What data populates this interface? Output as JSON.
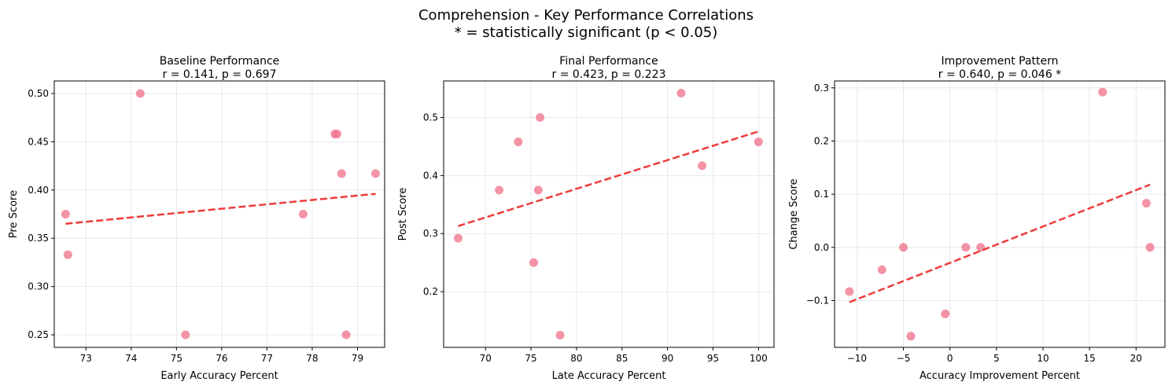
{
  "figure": {
    "title_line1": "Comprehension - Key Performance Correlations",
    "title_line2": "* = statistically significant (p < 0.05)"
  },
  "colors": {
    "point": "#f07890",
    "trend": "#ee3b3b",
    "grid": "#e3e3e3",
    "axis": "#000000"
  },
  "chart_data": [
    {
      "type": "scatter",
      "title": "Baseline Performance",
      "subtitle": "r = 0.141, p = 0.697",
      "xlabel": "Early Accuracy Percent",
      "ylabel": "Pre Score",
      "xlim": [
        72.3,
        79.6
      ],
      "ylim": [
        0.237,
        0.513
      ],
      "xticks": [
        73,
        74,
        75,
        76,
        77,
        78,
        79
      ],
      "xtick_labels": [
        "73",
        "74",
        "75",
        "76",
        "77",
        "78",
        "79"
      ],
      "yticks": [
        0.25,
        0.3,
        0.35,
        0.4,
        0.45,
        0.5
      ],
      "ytick_labels": [
        "0.25",
        "0.30",
        "0.35",
        "0.40",
        "0.45",
        "0.50"
      ],
      "grid": true,
      "points": [
        {
          "x": 72.55,
          "y": 0.375
        },
        {
          "x": 72.6,
          "y": 0.333
        },
        {
          "x": 74.2,
          "y": 0.5
        },
        {
          "x": 75.2,
          "y": 0.25
        },
        {
          "x": 77.8,
          "y": 0.375
        },
        {
          "x": 78.5,
          "y": 0.458
        },
        {
          "x": 78.55,
          "y": 0.458
        },
        {
          "x": 78.65,
          "y": 0.417
        },
        {
          "x": 78.75,
          "y": 0.25
        },
        {
          "x": 79.4,
          "y": 0.417
        }
      ],
      "trend_line": {
        "x": [
          72.55,
          79.4
        ],
        "y": [
          0.365,
          0.396
        ]
      }
    },
    {
      "type": "scatter",
      "title": "Final Performance",
      "subtitle": "r = 0.423, p = 0.223",
      "xlabel": "Late Accuracy Percent",
      "ylabel": "Post Score",
      "xlim": [
        65.4,
        101.7
      ],
      "ylim": [
        0.104,
        0.563
      ],
      "xticks": [
        70,
        75,
        80,
        85,
        90,
        95,
        100
      ],
      "xtick_labels": [
        "70",
        "75",
        "80",
        "85",
        "90",
        "95",
        "100"
      ],
      "yticks": [
        0.2,
        0.3,
        0.4,
        0.5
      ],
      "ytick_labels": [
        "0.2",
        "0.3",
        "0.4",
        "0.5"
      ],
      "grid": true,
      "points": [
        {
          "x": 67.0,
          "y": 0.292
        },
        {
          "x": 71.5,
          "y": 0.375
        },
        {
          "x": 73.6,
          "y": 0.458
        },
        {
          "x": 75.3,
          "y": 0.25
        },
        {
          "x": 75.8,
          "y": 0.375
        },
        {
          "x": 76.0,
          "y": 0.5
        },
        {
          "x": 78.2,
          "y": 0.125
        },
        {
          "x": 91.5,
          "y": 0.542
        },
        {
          "x": 93.8,
          "y": 0.417
        },
        {
          "x": 100.0,
          "y": 0.458
        }
      ],
      "trend_line": {
        "x": [
          67.0,
          100.0
        ],
        "y": [
          0.313,
          0.476
        ]
      }
    },
    {
      "type": "scatter",
      "title": "Improvement Pattern",
      "subtitle": "r = 0.640, p = 0.046 *",
      "xlabel": "Accuracy Improvement Percent",
      "ylabel": "Change Score",
      "xlim": [
        -12.4,
        23.1
      ],
      "ylim": [
        -0.188,
        0.313
      ],
      "xticks": [
        -10,
        -5,
        0,
        5,
        10,
        15,
        20
      ],
      "xtick_labels": [
        "−10",
        "−5",
        "0",
        "5",
        "10",
        "15",
        "20"
      ],
      "yticks": [
        -0.1,
        0.0,
        0.1,
        0.2,
        0.3
      ],
      "ytick_labels": [
        "−0.1",
        "0.0",
        "0.1",
        "0.2",
        "0.3"
      ],
      "grid": true,
      "points": [
        {
          "x": -10.8,
          "y": -0.083
        },
        {
          "x": -7.3,
          "y": -0.042
        },
        {
          "x": -5.0,
          "y": 0.0
        },
        {
          "x": -4.2,
          "y": -0.167
        },
        {
          "x": -0.5,
          "y": -0.125
        },
        {
          "x": 1.7,
          "y": 0.0
        },
        {
          "x": 3.3,
          "y": 0.0
        },
        {
          "x": 16.4,
          "y": 0.292
        },
        {
          "x": 21.1,
          "y": 0.083
        },
        {
          "x": 21.5,
          "y": 0.0
        }
      ],
      "trend_line": {
        "x": [
          -10.8,
          21.5
        ],
        "y": [
          -0.103,
          0.118
        ]
      }
    }
  ]
}
